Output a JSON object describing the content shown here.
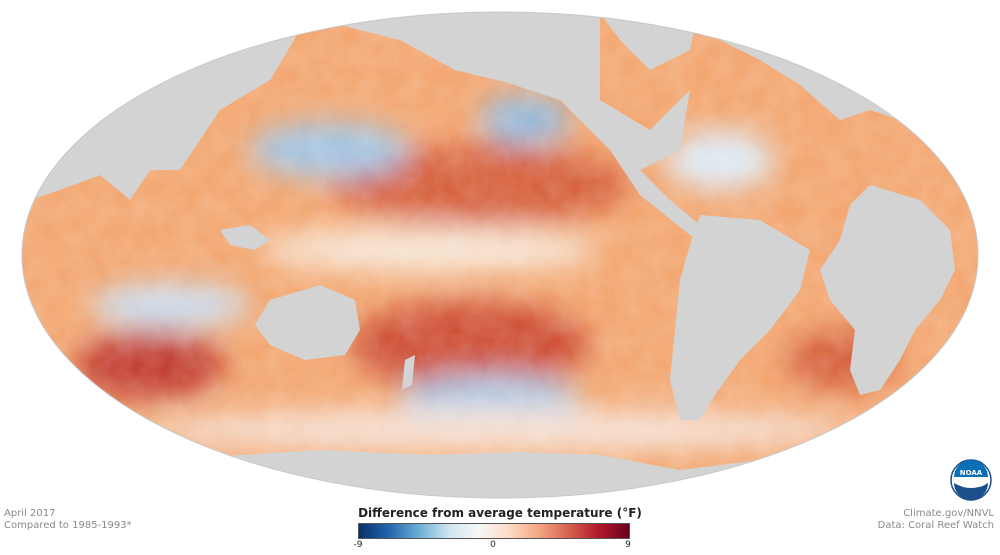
{
  "map": {
    "projection": "Mollweide",
    "colors": {
      "land": "#d3d3d3",
      "ocean_warm": "#f2a36b",
      "ocean_hot": "#c0392b",
      "ocean_neutral": "#f7f3ee",
      "ocean_cool": "#8fb7dc",
      "ocean_cold": "#3b75b0"
    }
  },
  "caption_left": {
    "line1": "April 2017",
    "line2": "Compared to 1985-1993*"
  },
  "caption_right": {
    "line1": "Climate.gov/NNVL",
    "line2": "Data: Coral Reef Watch"
  },
  "legend": {
    "title": "Difference from average temperature (°F)",
    "min_label": "-9",
    "mid_label": "0",
    "max_label": "9",
    "min": -9,
    "max": 9,
    "colors": [
      "#08306b",
      "#2166ac",
      "#6baed6",
      "#d1e5f0",
      "#f7f7f7",
      "#fddbc7",
      "#f4a582",
      "#d6604d",
      "#b2182b",
      "#67001f"
    ]
  },
  "logo": {
    "text": "NOAA"
  }
}
